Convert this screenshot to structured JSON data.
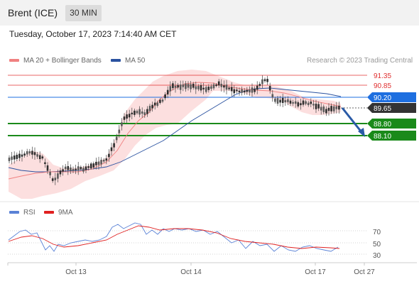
{
  "header": {
    "title": "Brent (ICE)",
    "timeframe": "30 MIN"
  },
  "timestamp": "Tuesday, October 17, 2023 7:14:40 AM CET",
  "legend": {
    "ma20": "MA 20 + Bollinger Bands",
    "ma50": "MA 50",
    "credit": "Research © 2023 Trading Central"
  },
  "colors": {
    "resistance": "#e03030",
    "support": "#1a8a1a",
    "last_price": "#333333",
    "pivot": "#1e6fe0",
    "ma20": "#f08080",
    "ma50": "#2a52a0",
    "bands": "#fbd4d4",
    "rsi": "#5a82d6",
    "rsi_ma": "#e02020",
    "candle_up": "#5a5a5a",
    "candle_down": "#2e2e2e"
  },
  "levels": [
    {
      "label": "91.35",
      "kind": "resistance"
    },
    {
      "label": "90.85",
      "kind": "resistance"
    },
    {
      "label": "90.20",
      "kind": "pivot"
    },
    {
      "label": "89.65",
      "kind": "last"
    },
    {
      "label": "88.80",
      "kind": "support"
    },
    {
      "label": "88.10",
      "kind": "support"
    }
  ],
  "rsi_panel": {
    "legend_rsi": "RSI",
    "legend_ma": "9MA",
    "levels": [
      "70",
      "50",
      "30"
    ]
  },
  "x_axis": {
    "labels": [
      "Oct 13",
      "Oct 14",
      "Oct 17",
      "Oct 27"
    ]
  }
}
